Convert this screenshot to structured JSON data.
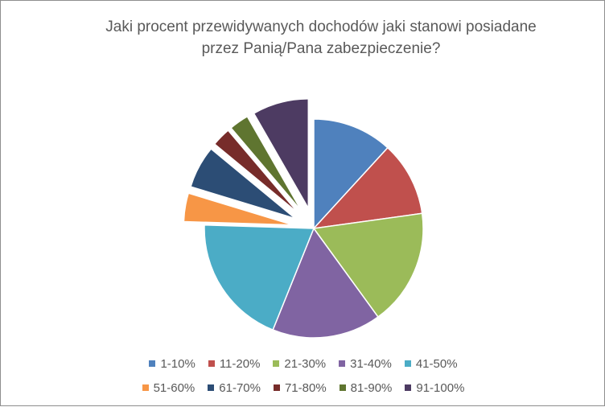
{
  "chart_data": {
    "type": "pie",
    "title_lines": [
      "Jaki procent  przewidywanych dochodów  jaki stanowi posiadane",
      "przez Panią/Pana zabezpieczenie?"
    ],
    "categories": [
      "1-10%",
      "11-20%",
      "21-30%",
      "31-40%",
      "41-50%",
      "51-60%",
      "61-70%",
      "71-80%",
      "81-90%",
      "91-100%"
    ],
    "values": [
      11.8,
      11.0,
      17.2,
      16.1,
      19.4,
      4.2,
      6.3,
      2.8,
      2.9,
      8.3
    ],
    "colors": [
      "#4f81bd",
      "#c0504d",
      "#9bbb59",
      "#8064a2",
      "#4bacc6",
      "#f79646",
      "#2c4d75",
      "#772c2a",
      "#5f7530",
      "#4d3b62"
    ],
    "exploded": [
      false,
      false,
      false,
      false,
      false,
      true,
      true,
      true,
      true,
      true
    ],
    "legend_position": "bottom"
  }
}
